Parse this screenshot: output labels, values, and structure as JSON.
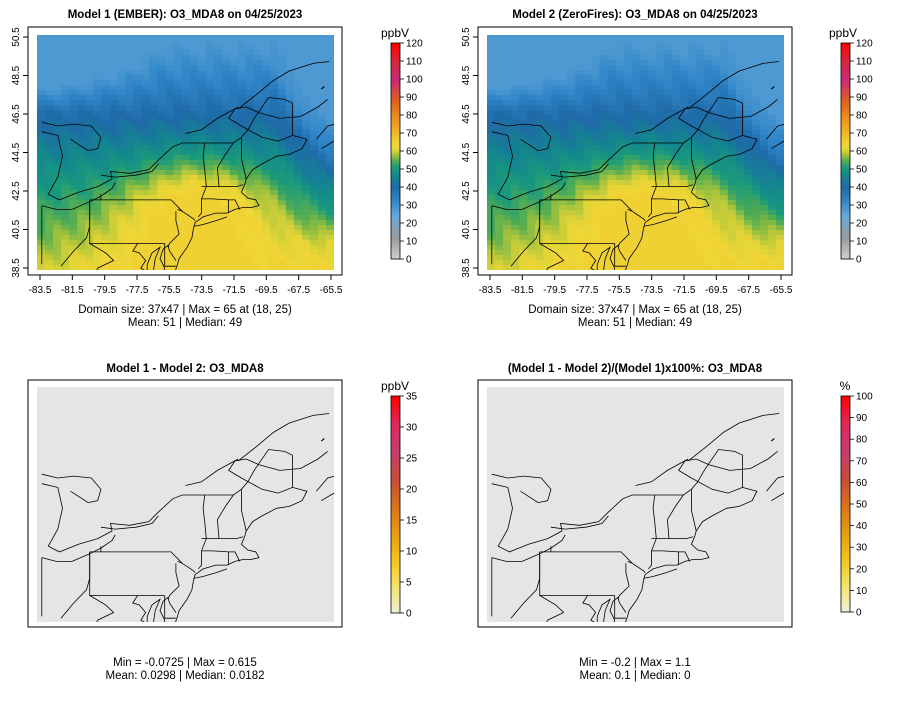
{
  "chart_data": [
    {
      "type": "heatmap",
      "title": "Model 1 (EMBER): O3_MDA8 on 04/25/2023",
      "xticks": [
        "-83.5",
        "-81.5",
        "-79.5",
        "-77.5",
        "-75.5",
        "-73.5",
        "-71.5",
        "-69.5",
        "-67.5",
        "-65.5"
      ],
      "yticks": [
        "38.5",
        "40.5",
        "42.5",
        "44.5",
        "46.5",
        "48.5",
        "50.5"
      ],
      "colorbar": {
        "unit": "ppbV",
        "ticks": [
          "0",
          "10",
          "20",
          "30",
          "40",
          "50",
          "60",
          "70",
          "80",
          "90",
          "100",
          "110",
          "120"
        ],
        "range": [
          0,
          120
        ]
      },
      "field": "ozone",
      "stats": [
        "Domain size: 37x47 | Max = 65 at (18, 25)",
        "Mean: 51 |  Median: 49"
      ]
    },
    {
      "type": "heatmap",
      "title": "Model 2 (ZeroFires): O3_MDA8 on 04/25/2023",
      "xticks": [
        "-83.5",
        "-81.5",
        "-79.5",
        "-77.5",
        "-75.5",
        "-73.5",
        "-71.5",
        "-69.5",
        "-67.5",
        "-65.5"
      ],
      "yticks": [
        "38.5",
        "40.5",
        "42.5",
        "44.5",
        "46.5",
        "48.5",
        "50.5"
      ],
      "colorbar": {
        "unit": "ppbV",
        "ticks": [
          "0",
          "10",
          "20",
          "30",
          "40",
          "50",
          "60",
          "70",
          "80",
          "90",
          "100",
          "110",
          "120"
        ],
        "range": [
          0,
          120
        ]
      },
      "field": "ozone",
      "stats": [
        "Domain size: 37x47 | Max = 65 at (18, 25)",
        "Mean: 51 |  Median: 49"
      ]
    },
    {
      "type": "heatmap",
      "title": "Model 1 - Model 2: O3_MDA8",
      "colorbar": {
        "unit": "ppbV",
        "ticks": [
          "0",
          "5",
          "10",
          "15",
          "20",
          "25",
          "30",
          "35"
        ],
        "range": [
          0,
          35
        ]
      },
      "field": "flat",
      "stats": [
        "Min = -0.0725 | Max = 0.615",
        "Mean: 0.0298 |  Median: 0.0182"
      ]
    },
    {
      "type": "heatmap",
      "title": "(Model 1 - Model 2)/(Model 1)x100%: O3_MDA8",
      "colorbar": {
        "unit": "%",
        "ticks": [
          "0",
          "10",
          "20",
          "30",
          "40",
          "50",
          "60",
          "70",
          "80",
          "90",
          "100"
        ],
        "range": [
          0,
          100
        ]
      },
      "field": "flat",
      "stats": [
        "Min = -0.2 | Max = 1.1",
        "Mean: 0.1 |  Median: 0"
      ]
    }
  ],
  "colors": {
    "flat_fill": "#e5e5e5",
    "ozone_ramp": [
      "#c8c8c8",
      "#8c8c8c",
      "#6aa8d6",
      "#3a8fd0",
      "#1f6fae",
      "#0e8a8f",
      "#1f9a7a",
      "#5fb04a",
      "#b8c83a",
      "#f0d636",
      "#f0a020",
      "#e05a1a",
      "#c8287a",
      "#d8283c",
      "#ff0000"
    ],
    "diff_ramp": [
      "#f0f0d8",
      "#f4e46a",
      "#f2c41a",
      "#e89a10",
      "#d8701a",
      "#c84a3a",
      "#c83c70",
      "#e0285a",
      "#ff0000"
    ]
  }
}
